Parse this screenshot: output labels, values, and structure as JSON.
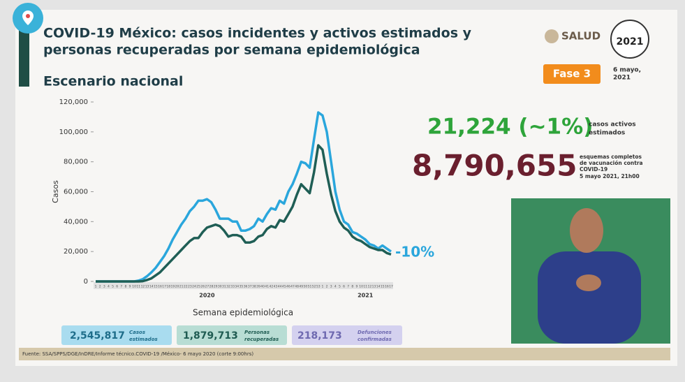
{
  "header": {
    "title_line1": "COVID-19 México: casos incidentes y activos estimados y",
    "title_line2": "personas recuperadas por semana epidemiológica",
    "subtitle": "Escenario nacional",
    "logo": "SALUD",
    "logo_year": "2021",
    "phase": "Fase 3",
    "date_line1": "6 mayo,",
    "date_line2": "2021"
  },
  "stats": {
    "active_cases": "21,224 (~1%)",
    "active_label_line1": "casos activos",
    "active_label_line2": "estimados",
    "vaccination": "8,790,655",
    "vaccination_label_line1": "esquemas completos",
    "vaccination_label_line2": "de vacunación contra",
    "vaccination_label_line3": "COVID-19",
    "vaccination_label_line4": "5 mayo 2021, 21h00"
  },
  "totals": [
    {
      "value": "2,545,817",
      "label_line1": "Casos",
      "label_line2": "estimados"
    },
    {
      "value": "1,879,713",
      "label_line1": "Personas",
      "label_line2": "recuperadas"
    },
    {
      "value": "218,173",
      "label_line1": "Defunciones",
      "label_line2": "confirmadas"
    }
  ],
  "footer": {
    "source": "Fuente: SSA/SPPS/DGE/InDRE/Informe técnico.COVID-19 /México- 6 mayo 2020 (corte 9:00hrs)"
  },
  "chart_data": {
    "type": "line",
    "ylabel": "Casos",
    "xlabel": "Semana epidemiológica",
    "years": [
      "2020",
      "2021"
    ],
    "annotation": "-10%",
    "categories": [
      "1",
      "2",
      "3",
      "4",
      "5",
      "6",
      "7",
      "8",
      "9",
      "10",
      "11",
      "12",
      "13",
      "14",
      "15",
      "16",
      "17",
      "18",
      "19",
      "20",
      "21",
      "22",
      "23",
      "24",
      "25",
      "26",
      "27",
      "28",
      "29",
      "30",
      "31",
      "32",
      "33",
      "34",
      "35",
      "36",
      "37",
      "38",
      "39",
      "40",
      "41",
      "42",
      "43",
      "44",
      "45",
      "46",
      "47",
      "48",
      "49",
      "50",
      "51",
      "52",
      "53",
      "1",
      "2",
      "3",
      "4",
      "5",
      "6",
      "7",
      "8",
      "9",
      "10",
      "11",
      "12",
      "13",
      "14",
      "15",
      "16",
      "17"
    ],
    "ylim": [
      0,
      120000
    ],
    "yticks": [
      0,
      {
        "value": 20000,
        "label": "20,000"
      },
      {
        "value": 40000,
        "label": "40,000"
      },
      {
        "value": 60000,
        "label": "60,000"
      },
      {
        "value": 80000,
        "label": "80,000"
      },
      {
        "value": 100000,
        "label": "100,000"
      },
      {
        "value": 120000,
        "label": "120,000"
      }
    ],
    "series": [
      {
        "color": "#2aa6dc",
        "values": [
          0,
          0,
          0,
          0,
          0,
          0,
          0,
          0,
          0,
          0,
          500,
          1500,
          3500,
          6000,
          9000,
          13000,
          17000,
          22000,
          28000,
          33000,
          38000,
          42000,
          47000,
          50000,
          54000,
          54000,
          55000,
          53000,
          48000,
          42000,
          42000,
          42000,
          40000,
          40000,
          34000,
          34000,
          35000,
          37000,
          42000,
          40000,
          45000,
          49000,
          48000,
          54000,
          52000,
          60000,
          65000,
          72000,
          80000,
          79000,
          76000,
          95000,
          113000,
          111000,
          100000,
          80000,
          60000,
          48000,
          40000,
          38000,
          33000,
          32000,
          30000,
          28000,
          25000,
          24000,
          22000,
          24000,
          22000,
          20000
        ]
      },
      {
        "color": "#1f5e55",
        "values": [
          0,
          0,
          0,
          0,
          0,
          0,
          0,
          0,
          0,
          0,
          0,
          200,
          1000,
          2000,
          4000,
          6000,
          9000,
          12000,
          15000,
          18000,
          21000,
          24000,
          27000,
          29000,
          29000,
          33000,
          36000,
          37000,
          38000,
          37000,
          34000,
          30000,
          31000,
          31000,
          30000,
          26000,
          26000,
          27000,
          30000,
          31000,
          35000,
          37000,
          36000,
          41000,
          40000,
          45000,
          50000,
          58000,
          65000,
          62000,
          59000,
          73000,
          91000,
          88000,
          72000,
          58000,
          47000,
          40000,
          36000,
          34000,
          30000,
          28000,
          27000,
          25000,
          23000,
          22000,
          21000,
          21000,
          19000,
          18000
        ]
      }
    ]
  }
}
